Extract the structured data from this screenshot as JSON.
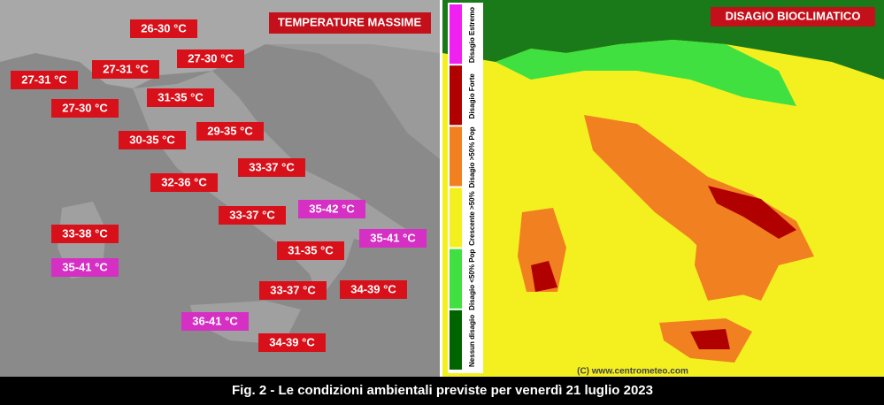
{
  "left_panel": {
    "title": "TEMPERATURE MASSIME",
    "labels": [
      {
        "text": "26-30 °C",
        "color": "#d8101a"
      },
      {
        "text": "27-31 °C",
        "color": "#d8101a"
      },
      {
        "text": "27-30 °C",
        "color": "#d8101a"
      },
      {
        "text": "27-31 °C",
        "color": "#d8101a"
      },
      {
        "text": "31-35 °C",
        "color": "#d8101a"
      },
      {
        "text": "27-30 °C",
        "color": "#d8101a"
      },
      {
        "text": "29-35 °C",
        "color": "#d8101a"
      },
      {
        "text": "30-35 °C",
        "color": "#d8101a"
      },
      {
        "text": "33-37 °C",
        "color": "#d8101a"
      },
      {
        "text": "32-36 °C",
        "color": "#d8101a"
      },
      {
        "text": "35-42 °C",
        "color": "#d62fc4"
      },
      {
        "text": "33-37 °C",
        "color": "#d8101a"
      },
      {
        "text": "35-41 °C",
        "color": "#d62fc4"
      },
      {
        "text": "33-38 °C",
        "color": "#d8101a"
      },
      {
        "text": "31-35 °C",
        "color": "#d8101a"
      },
      {
        "text": "35-41 °C",
        "color": "#d62fc4"
      },
      {
        "text": "33-37 °C",
        "color": "#d8101a"
      },
      {
        "text": "34-39 °C",
        "color": "#d8101a"
      },
      {
        "text": "36-41 °C",
        "color": "#d62fc4"
      },
      {
        "text": "34-39 °C",
        "color": "#d8101a"
      }
    ]
  },
  "right_panel": {
    "title": "DISAGIO BIOCLIMATICO",
    "legend": [
      {
        "text": "Disagio Estremo",
        "color": "#f020f0"
      },
      {
        "text": "Disagio Forte",
        "color": "#b00000"
      },
      {
        "text": "Disagio >50% Pop",
        "color": "#f08020"
      },
      {
        "text": "Crescente >50%",
        "color": "#f4f020"
      },
      {
        "text": "Disagio <50% Pop",
        "color": "#40e040"
      },
      {
        "text": "Nessun disagio",
        "color": "#006400"
      }
    ],
    "watermark": "(C) www.centrometeo.com"
  },
  "caption": "Fig. 2 - Le condizioni ambientali previste per venerdì 21 luglio 2023"
}
